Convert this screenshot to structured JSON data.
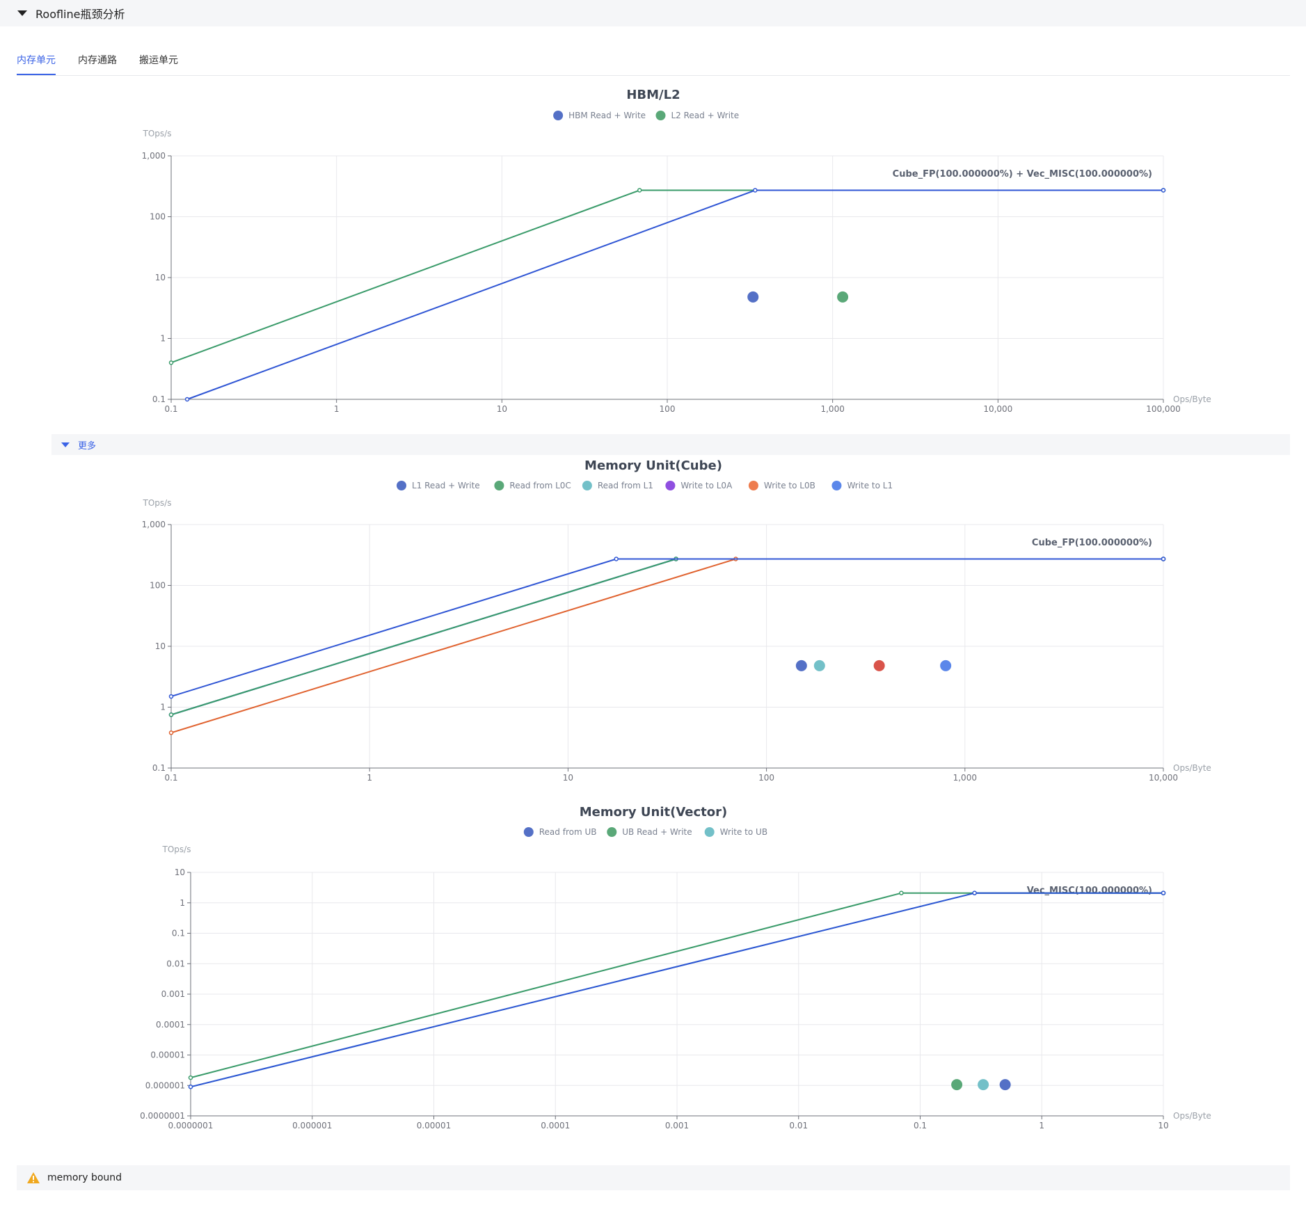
{
  "section": {
    "title": "Roofline瓶颈分析"
  },
  "tabs": [
    {
      "label": "内存单元",
      "active": true
    },
    {
      "label": "内存通路",
      "active": false
    },
    {
      "label": "搬运单元",
      "active": false
    }
  ],
  "more": {
    "label": "更多"
  },
  "status": {
    "text": "memory bound",
    "icon": "warning-icon"
  },
  "chart_data": [
    {
      "type": "line",
      "title": "HBM/L2",
      "xlabel": "Ops/Byte",
      "ylabel": "TOps/s",
      "xscale": "log",
      "yscale": "log",
      "xlim": [
        0.1,
        100000
      ],
      "ylim": [
        0.1,
        1000
      ],
      "xticks": [
        {
          "v": 0.1,
          "label": "0.1"
        },
        {
          "v": 1,
          "label": "1"
        },
        {
          "v": 10,
          "label": "10"
        },
        {
          "v": 100,
          "label": "100"
        },
        {
          "v": 1000,
          "label": "1,000"
        },
        {
          "v": 10000,
          "label": "10,000"
        },
        {
          "v": 100000,
          "label": "100,000"
        }
      ],
      "yticks": [
        {
          "v": 0.1,
          "label": "0.1"
        },
        {
          "v": 1,
          "label": "1"
        },
        {
          "v": 10,
          "label": "10"
        },
        {
          "v": 100,
          "label": "100"
        },
        {
          "v": 1000,
          "label": "1,000"
        }
      ],
      "grid": true,
      "legend_position": "top-center",
      "roof_label": "Cube_FP(100.000000%) + Vec_MISC(100.000000%)",
      "series": [
        {
          "name": "HBM Read + Write",
          "color": "#5470c6",
          "line_color": "#2f55d4",
          "line": [
            [
              0.125,
              0.1
            ],
            [
              340,
              272
            ],
            [
              100000,
              272
            ]
          ],
          "point": [
            330,
            4.8
          ]
        },
        {
          "name": "L2 Read + Write",
          "color": "#5aa878",
          "line_color": "#3a9b6a",
          "line": [
            [
              0.1,
              0.4
            ],
            [
              68,
              272
            ],
            [
              100000,
              272
            ]
          ],
          "point": [
            1150,
            4.8
          ]
        }
      ]
    },
    {
      "type": "line",
      "title": "Memory Unit(Cube)",
      "xlabel": "Ops/Byte",
      "ylabel": "TOps/s",
      "xscale": "log",
      "yscale": "log",
      "xlim": [
        0.1,
        10000
      ],
      "ylim": [
        0.1,
        1000
      ],
      "xticks": [
        {
          "v": 0.1,
          "label": "0.1"
        },
        {
          "v": 1,
          "label": "1"
        },
        {
          "v": 10,
          "label": "10"
        },
        {
          "v": 100,
          "label": "100"
        },
        {
          "v": 1000,
          "label": "1,000"
        },
        {
          "v": 10000,
          "label": "10,000"
        }
      ],
      "yticks": [
        {
          "v": 0.1,
          "label": "0.1"
        },
        {
          "v": 1,
          "label": "1"
        },
        {
          "v": 10,
          "label": "10"
        },
        {
          "v": 100,
          "label": "100"
        },
        {
          "v": 1000,
          "label": "1,000"
        }
      ],
      "grid": true,
      "legend_position": "top-center",
      "roof_label": "Cube_FP(100.000000%)",
      "series": [
        {
          "name": "L1 Read + Write",
          "color": "#5470c6",
          "line_color": "#2f55d4",
          "line": [
            [
              0.1,
              1.5
            ],
            [
              17.5,
              272
            ],
            [
              10000,
              272
            ]
          ],
          "point": [
            150,
            4.8
          ]
        },
        {
          "name": "Read from L0C",
          "color": "#5aa878",
          "line_color": "#3a9b6a",
          "line": [
            [
              0.1,
              0.75
            ],
            [
              35,
              272
            ],
            [
              10000,
              272
            ]
          ],
          "point": null
        },
        {
          "name": "Read from L1",
          "color": "#73c0c8",
          "line_color": "#4ab0bf",
          "line": [
            [
              0.1,
              0.75
            ],
            [
              35,
              272
            ],
            [
              10000,
              272
            ]
          ],
          "point": [
            185,
            4.8
          ]
        },
        {
          "name": "Write to L0A",
          "color": "#8f4fe0",
          "line_color": "#7a3fd8",
          "line": [
            [
              0.1,
              0.75
            ],
            [
              35,
              272
            ],
            [
              10000,
              272
            ]
          ],
          "point": null
        },
        {
          "name": "Write to L0B",
          "color": "#ee7d4f",
          "line_color": "#e0622f",
          "line": [
            [
              0.1,
              0.38
            ],
            [
              70,
              272
            ],
            [
              10000,
              272
            ]
          ],
          "point": [
            370,
            4.8
          ],
          "point_color": "#d9534a"
        },
        {
          "name": "Write to L1",
          "color": "#5b87ea",
          "line_color": "#2f55d4",
          "line": [
            [
              0.1,
              0.75
            ],
            [
              35,
              272
            ],
            [
              10000,
              272
            ]
          ],
          "point": [
            800,
            4.8
          ]
        }
      ]
    },
    {
      "type": "line",
      "title": "Memory Unit(Vector)",
      "xlabel": "Ops/Byte",
      "ylabel": "TOps/s",
      "xscale": "log",
      "yscale": "log",
      "xlim": [
        1e-07,
        10
      ],
      "ylim": [
        1e-07,
        10
      ],
      "xticks": [
        {
          "v": 1e-07,
          "label": "0.0000001"
        },
        {
          "v": 1e-06,
          "label": "0.000001"
        },
        {
          "v": 1e-05,
          "label": "0.00001"
        },
        {
          "v": 0.0001,
          "label": "0.0001"
        },
        {
          "v": 0.001,
          "label": "0.001"
        },
        {
          "v": 0.01,
          "label": "0.01"
        },
        {
          "v": 0.1,
          "label": "0.1"
        },
        {
          "v": 1,
          "label": "1"
        },
        {
          "v": 10,
          "label": "10"
        }
      ],
      "yticks": [
        {
          "v": 1e-07,
          "label": "0.0000001"
        },
        {
          "v": 1e-06,
          "label": "0.000001"
        },
        {
          "v": 1e-05,
          "label": "0.00001"
        },
        {
          "v": 0.0001,
          "label": "0.0001"
        },
        {
          "v": 0.001,
          "label": "0.001"
        },
        {
          "v": 0.01,
          "label": "0.01"
        },
        {
          "v": 0.1,
          "label": "0.1"
        },
        {
          "v": 1,
          "label": "1"
        },
        {
          "v": 10,
          "label": "10"
        }
      ],
      "grid": true,
      "legend_position": "top-center",
      "roof_label": "Vec_MISC(100.000000%)",
      "series": [
        {
          "name": "Read from UB",
          "color": "#5470c6",
          "line_color": "#2f55d4",
          "line": [
            [
              1e-07,
              9e-07
            ],
            [
              0.28,
              2.1
            ],
            [
              10,
              2.1
            ]
          ],
          "point": [
            0.5,
            1.06e-06
          ]
        },
        {
          "name": "UB Read + Write",
          "color": "#5aa878",
          "line_color": "#3a9b6a",
          "line": [
            [
              1e-07,
              1.8e-06
            ],
            [
              0.07,
              2.1
            ],
            [
              10,
              2.1
            ]
          ],
          "point": [
            0.2,
            1.06e-06
          ]
        },
        {
          "name": "Write to UB",
          "color": "#73c0c8",
          "line_color": "#4ab0bf",
          "line": [
            [
              1e-07,
              9e-07
            ],
            [
              0.28,
              2.1
            ],
            [
              10,
              2.1
            ]
          ],
          "point": [
            0.33,
            1.06e-06
          ]
        }
      ]
    }
  ]
}
